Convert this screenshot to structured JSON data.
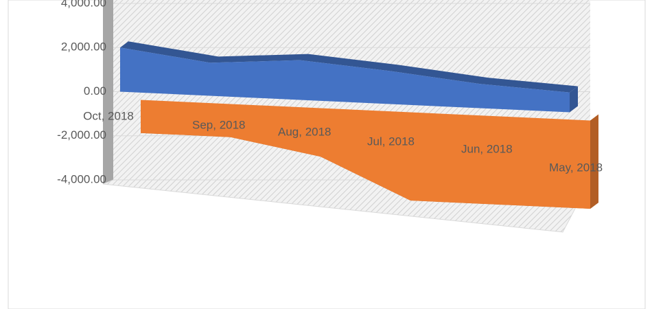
{
  "chart_data": {
    "type": "area3d",
    "categories": [
      "Oct, 2018",
      "Sep, 2018",
      "Aug, 2018",
      "Jul, 2018",
      "Jun, 2018",
      "May, 2018"
    ],
    "series": [
      {
        "color": "#4472c4",
        "values": [
          2000,
          1500,
          1800,
          1500,
          1100,
          900
        ]
      },
      {
        "color": "#ed7d31",
        "values": [
          -1500,
          -1500,
          -2200,
          -4000,
          -4000,
          -4000
        ]
      }
    ],
    "ylim": [
      -4000,
      4000
    ],
    "yticks": [
      {
        "value": -4000,
        "label": "-4,000.00"
      },
      {
        "value": -2000,
        "label": "-2,000.00"
      },
      {
        "value": 0,
        "label": "0.00"
      },
      {
        "value": 2000,
        "label": "2,000.00"
      },
      {
        "value": 4000,
        "label": "4,000.00"
      }
    ],
    "grid": true
  }
}
